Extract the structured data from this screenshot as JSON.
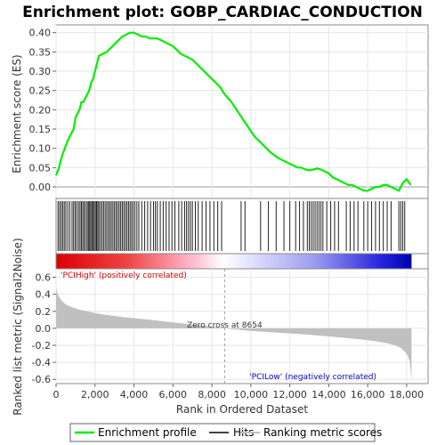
{
  "chart_data": {
    "type": "line",
    "title": "Enrichment plot: GOBP_CARDIAC_CONDUCTION",
    "es_ylabel": "Enrichment score (ES)",
    "es_ylim": [
      -0.03,
      0.42
    ],
    "es_yticks": [
      0.0,
      0.05,
      0.1,
      0.15,
      0.2,
      0.25,
      0.3,
      0.35,
      0.4
    ],
    "es_ytick_labels": [
      "0.00",
      "0.05",
      "0.10",
      "0.15",
      "0.20",
      "0.25",
      "0.30",
      "0.35",
      "0.40"
    ],
    "xlabel": "Rank in Ordered Dataset",
    "xlim": [
      0,
      19100
    ],
    "xticks": [
      0,
      2000,
      4000,
      6000,
      8000,
      10000,
      12000,
      14000,
      16000,
      18000
    ],
    "xtick_labels": [
      "0",
      "2,000",
      "4,000",
      "6,000",
      "8,000",
      "10,000",
      "12,000",
      "14,000",
      "16,000",
      "18,000"
    ],
    "metric_ylabel": "Ranked list metric (Signal2Noise)",
    "metric_ylim": [
      -0.65,
      0.7
    ],
    "metric_yticks": [
      -0.6,
      -0.4,
      -0.2,
      0.0,
      0.2,
      0.4,
      0.6
    ],
    "metric_ytick_labels": [
      "-0.6",
      "-0.4",
      "-0.2",
      "0.0",
      "0.2",
      "0.4",
      "0.6"
    ],
    "enrichment_profile": {
      "name": "Enrichment profile",
      "color": "#00ee00",
      "x": [
        0,
        150,
        300,
        450,
        600,
        800,
        900,
        1000,
        1200,
        1300,
        1400,
        1500,
        1600,
        1700,
        1800,
        1900,
        2000,
        2100,
        2200,
        2400,
        2600,
        2800,
        3000,
        3200,
        3400,
        3600,
        3800,
        4000,
        4200,
        4400,
        4600,
        4800,
        5000,
        5200,
        5400,
        5600,
        5800,
        6000,
        6200,
        6400,
        6600,
        6800,
        7000,
        7200,
        7400,
        7600,
        7800,
        8000,
        8200,
        8400,
        8654,
        9000,
        9400,
        9800,
        10200,
        10600,
        11000,
        11400,
        11800,
        12200,
        12400,
        12600,
        12800,
        13000,
        13200,
        13400,
        13600,
        13800,
        14000,
        14200,
        14400,
        14600,
        14800,
        15000,
        15200,
        15400,
        15600,
        15800,
        16000,
        16200,
        16400,
        16600,
        16800,
        17000,
        17200,
        17400,
        17600,
        17800,
        18000,
        18200
      ],
      "y": [
        0.03,
        0.05,
        0.08,
        0.1,
        0.12,
        0.14,
        0.15,
        0.18,
        0.2,
        0.22,
        0.22,
        0.23,
        0.24,
        0.25,
        0.27,
        0.28,
        0.3,
        0.32,
        0.34,
        0.345,
        0.35,
        0.36,
        0.37,
        0.38,
        0.39,
        0.395,
        0.4,
        0.4,
        0.395,
        0.39,
        0.39,
        0.385,
        0.385,
        0.385,
        0.38,
        0.375,
        0.37,
        0.365,
        0.355,
        0.345,
        0.34,
        0.335,
        0.33,
        0.32,
        0.31,
        0.3,
        0.29,
        0.28,
        0.27,
        0.26,
        0.24,
        0.22,
        0.19,
        0.16,
        0.13,
        0.11,
        0.09,
        0.075,
        0.065,
        0.055,
        0.05,
        0.05,
        0.045,
        0.043,
        0.045,
        0.048,
        0.045,
        0.04,
        0.035,
        0.025,
        0.02,
        0.015,
        0.01,
        0.005,
        0.005,
        0.0,
        -0.005,
        -0.01,
        -0.01,
        -0.005,
        0.0,
        0.0,
        0.005,
        0.005,
        0.0,
        -0.005,
        -0.01,
        0.01,
        0.02,
        0.005
      ]
    },
    "hits": {
      "name": "Hits",
      "positions": [
        100,
        180,
        260,
        340,
        420,
        500,
        600,
        700,
        820,
        900,
        980,
        1060,
        1150,
        1230,
        1300,
        1370,
        1440,
        1520,
        1600,
        1660,
        1720,
        1780,
        1840,
        1900,
        1960,
        2020,
        2080,
        2140,
        2200,
        2280,
        2360,
        2440,
        2520,
        2600,
        2680,
        2760,
        2840,
        2920,
        3000,
        3080,
        3160,
        3240,
        3320,
        3400,
        3480,
        3560,
        3640,
        3720,
        3800,
        3880,
        3960,
        4050,
        4150,
        4250,
        4400,
        4550,
        4700,
        4850,
        5000,
        5100,
        5200,
        5350,
        5500,
        5650,
        5800,
        5950,
        6100,
        6300,
        6450,
        6600,
        6700,
        6800,
        6900,
        7000,
        7150,
        7300,
        7500,
        7700,
        7900,
        8100,
        8300,
        8500,
        9500,
        9700,
        10500,
        10900,
        11300,
        11700,
        12000,
        12300,
        12500,
        12700,
        12900,
        13000,
        13100,
        13200,
        13300,
        13400,
        13500,
        13600,
        13700,
        13900,
        14100,
        14300,
        14500,
        14900,
        15100,
        15300,
        15500,
        15800,
        16000,
        16200,
        16400,
        16600,
        16800,
        17000,
        17200,
        17600,
        17700,
        17800,
        17900
      ]
    },
    "ranking_metric": {
      "name": "Ranking metric scores",
      "color": "#c0c0c0",
      "x": [
        0,
        50,
        150,
        300,
        500,
        800,
        1200,
        1600,
        2000,
        2500,
        3000,
        3500,
        4000,
        5000,
        6000,
        7000,
        8000,
        8654,
        9000,
        10000,
        11000,
        12000,
        13000,
        14000,
        15000,
        16000,
        16500,
        17000,
        17400,
        17700,
        17900,
        18050,
        18150,
        18200,
        18250
      ],
      "y": [
        0.5,
        0.42,
        0.37,
        0.32,
        0.28,
        0.25,
        0.22,
        0.2,
        0.18,
        0.16,
        0.145,
        0.13,
        0.12,
        0.095,
        0.07,
        0.045,
        0.02,
        0.0,
        -0.01,
        -0.03,
        -0.045,
        -0.06,
        -0.075,
        -0.095,
        -0.115,
        -0.14,
        -0.155,
        -0.175,
        -0.2,
        -0.23,
        -0.27,
        -0.32,
        -0.38,
        -0.48,
        -0.62
      ]
    },
    "zero_cross": 8654,
    "zero_cross_label": "Zero cross at 8654",
    "label_high": "'PCIHigh' (positively correlated)",
    "label_low": "'PCILow' (negatively correlated)",
    "high_color": "#cc0000",
    "low_color": "#0000cc"
  },
  "legend": {
    "items": [
      {
        "label": "Enrichment profile",
        "color": "#00ee00"
      },
      {
        "label": "Hits",
        "color": "#444444"
      },
      {
        "label": "Ranking metric scores",
        "color": "#c0c0c0"
      }
    ]
  }
}
